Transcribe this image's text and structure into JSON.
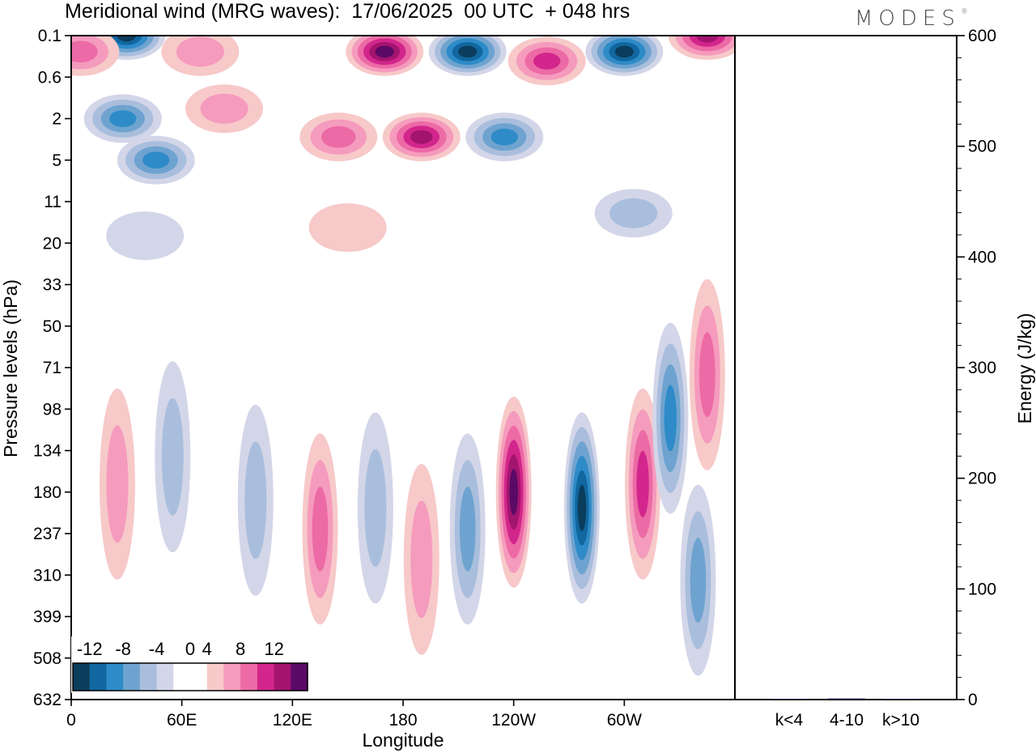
{
  "title": "Meridional wind (MRG waves):  17/06/2025  00 UTC  + 048 hrs",
  "brand": "MODES",
  "brand_mark": "®",
  "chart_data": [
    {
      "type": "heatmap",
      "title": "Meridional wind (MRG waves):  17/06/2025  00 UTC  + 048 hrs",
      "xlabel": "Longitude",
      "ylabel": "Pressure levels (hPa)",
      "x_ticks": [
        "0",
        "60E",
        "120E",
        "180",
        "120W",
        "60W"
      ],
      "y_ticks": [
        "0.1",
        "0.6",
        "2",
        "5",
        "11",
        "20",
        "33",
        "50",
        "71",
        "98",
        "134",
        "180",
        "237",
        "310",
        "399",
        "508",
        "632"
      ],
      "colorbar": {
        "labels": [
          "-12",
          "-8",
          "-4",
          "0",
          "4",
          "8",
          "12"
        ],
        "levels": [
          -14,
          -12,
          -10,
          -8,
          -6,
          -4,
          -2,
          2,
          4,
          6,
          8,
          10,
          12,
          14
        ],
        "colors": [
          "#0b3d5c",
          "#1167a0",
          "#2e8bc7",
          "#6fa3cf",
          "#a9bedd",
          "#d3d6e8",
          "#ffffff",
          "#ffffff",
          "#f7c9c9",
          "#f59bbd",
          "#ec6aa5",
          "#d2268c",
          "#a3146f",
          "#5a0a66"
        ]
      },
      "colors": {
        "negative_peak": "#0b3d5c",
        "positive_peak": "#5a0a66",
        "light_negative": "#d3d6e8",
        "light_positive": "#f7c9c9"
      },
      "features": [
        {
          "sign": "negative",
          "lon": 30,
          "level": 0.1,
          "max_abs": 14
        },
        {
          "sign": "positive",
          "lon": 5,
          "level": 0.2,
          "max_abs": 8
        },
        {
          "sign": "positive",
          "lon": 70,
          "level": 0.2,
          "max_abs": 6
        },
        {
          "sign": "positive",
          "lon": 170,
          "level": 0.2,
          "max_abs": 14
        },
        {
          "sign": "negative",
          "lon": 215,
          "level": 0.2,
          "max_abs": 14
        },
        {
          "sign": "positive",
          "lon": 258,
          "level": 0.3,
          "max_abs": 10
        },
        {
          "sign": "negative",
          "lon": 300,
          "level": 0.2,
          "max_abs": 14
        },
        {
          "sign": "positive",
          "lon": 345,
          "level": 0.1,
          "max_abs": 12
        },
        {
          "sign": "negative",
          "lon": 28,
          "level": 2,
          "max_abs": 10
        },
        {
          "sign": "negative",
          "lon": 46,
          "level": 5,
          "max_abs": 10
        },
        {
          "sign": "positive",
          "lon": 83,
          "level": 1.5,
          "max_abs": 6
        },
        {
          "sign": "positive",
          "lon": 145,
          "level": 3,
          "max_abs": 8
        },
        {
          "sign": "positive",
          "lon": 190,
          "level": 3,
          "max_abs": 12
        },
        {
          "sign": "negative",
          "lon": 235,
          "level": 3,
          "max_abs": 10
        },
        {
          "sign": "positive",
          "lon": 150,
          "level": 16,
          "max_abs": 4
        },
        {
          "sign": "negative",
          "lon": 40,
          "level": 18,
          "max_abs": 4
        },
        {
          "sign": "negative",
          "lon": 305,
          "level": 13,
          "max_abs": 6
        },
        {
          "sign": "positive",
          "lon": 25,
          "level": 170,
          "max_abs": 6
        },
        {
          "sign": "negative",
          "lon": 55,
          "level": 140,
          "max_abs": 6
        },
        {
          "sign": "negative",
          "lon": 100,
          "level": 190,
          "max_abs": 6
        },
        {
          "sign": "positive",
          "lon": 135,
          "level": 230,
          "max_abs": 8
        },
        {
          "sign": "negative",
          "lon": 165,
          "level": 200,
          "max_abs": 6
        },
        {
          "sign": "positive",
          "lon": 190,
          "level": 280,
          "max_abs": 6
        },
        {
          "sign": "negative",
          "lon": 215,
          "level": 230,
          "max_abs": 8
        },
        {
          "sign": "positive",
          "lon": 240,
          "level": 180,
          "max_abs": 14
        },
        {
          "sign": "negative",
          "lon": 277,
          "level": 200,
          "max_abs": 14
        },
        {
          "sign": "positive",
          "lon": 310,
          "level": 170,
          "max_abs": 10
        },
        {
          "sign": "negative",
          "lon": 325,
          "level": 105,
          "max_abs": 10
        },
        {
          "sign": "positive",
          "lon": 345,
          "level": 75,
          "max_abs": 8
        },
        {
          "sign": "negative",
          "lon": 340,
          "level": 320,
          "max_abs": 8
        }
      ]
    },
    {
      "type": "bar",
      "categories": [
        "k<4",
        "4-10",
        "k>10"
      ],
      "values": [
        0,
        1,
        0
      ],
      "ylabel": "Energy (J/kg)",
      "ylim": [
        0,
        600
      ],
      "y_ticks": [
        "0",
        "100",
        "200",
        "300",
        "400",
        "500",
        "600"
      ],
      "bar_color": "#1a1a5e"
    }
  ]
}
